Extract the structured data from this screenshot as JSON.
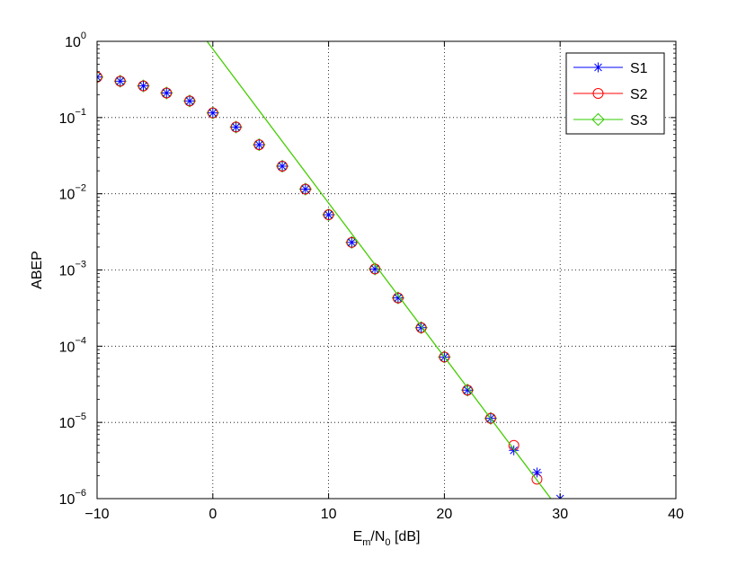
{
  "chart_data": {
    "type": "line",
    "xlabel": {
      "base": "E",
      "sub1": "m",
      "mid": "/N",
      "sub2": "0",
      "tail": " [dB]"
    },
    "ylabel": "ABEP",
    "xlim": [
      -10,
      40
    ],
    "ylim": [
      1e-06,
      1
    ],
    "y_scale": "log",
    "x_ticks": [
      "−10",
      "0",
      "10",
      "20",
      "30",
      "40"
    ],
    "x_tick_values": [
      -10,
      0,
      10,
      20,
      30,
      40
    ],
    "y_ticks": [
      {
        "value": 1,
        "base": "10",
        "exp": "0"
      },
      {
        "value": 0.1,
        "base": "10",
        "exp": "−1"
      },
      {
        "value": 0.01,
        "base": "10",
        "exp": "−2"
      },
      {
        "value": 0.001,
        "base": "10",
        "exp": "−3"
      },
      {
        "value": 0.0001,
        "base": "10",
        "exp": "−4"
      },
      {
        "value": 1e-05,
        "base": "10",
        "exp": "−5"
      },
      {
        "value": 1e-06,
        "base": "10",
        "exp": "−6"
      }
    ],
    "grid": true,
    "grid_style": "dotted",
    "legend_position": "top-right",
    "series": [
      {
        "name": "S1",
        "color": "#0000ff",
        "marker": "asterisk",
        "line": false,
        "x": [
          -10,
          -8,
          -6,
          -4,
          -2,
          0,
          2,
          4,
          6,
          8,
          10,
          12,
          14,
          16,
          18,
          20,
          22,
          24,
          26,
          28,
          30
        ],
        "y": [
          0.34,
          0.3,
          0.26,
          0.21,
          0.165,
          0.115,
          0.075,
          0.044,
          0.023,
          0.0115,
          0.0053,
          0.0023,
          0.00103,
          0.00043,
          0.000175,
          7.2e-05,
          2.65e-05,
          1.13e-05,
          4.3e-06,
          2.2e-06,
          1e-06
        ]
      },
      {
        "name": "S2",
        "color": "#ff0000",
        "marker": "circle",
        "line": false,
        "x": [
          -10,
          -8,
          -6,
          -4,
          -2,
          0,
          2,
          4,
          6,
          8,
          10,
          12,
          14,
          16,
          18,
          20,
          22,
          24,
          26,
          28
        ],
        "y": [
          0.34,
          0.3,
          0.26,
          0.21,
          0.165,
          0.115,
          0.075,
          0.044,
          0.023,
          0.0115,
          0.0053,
          0.0023,
          0.00103,
          0.00043,
          0.000175,
          7.2e-05,
          2.65e-05,
          1.13e-05,
          5e-06,
          1.8e-06
        ]
      },
      {
        "name": "S3",
        "color": "#33cc00",
        "marker": "diamond",
        "line": false,
        "x": [
          -10,
          -8,
          -6,
          -4,
          -2,
          0,
          2,
          4,
          6,
          8,
          10,
          12,
          14,
          16,
          18,
          20,
          22,
          24
        ],
        "y": [
          0.34,
          0.3,
          0.26,
          0.21,
          0.165,
          0.115,
          0.075,
          0.044,
          0.023,
          0.0115,
          0.0053,
          0.0023,
          0.00103,
          0.00043,
          0.000175,
          7.2e-05,
          2.65e-05,
          1.13e-05
        ]
      },
      {
        "color": "#44cc00",
        "marker": "none",
        "line": true,
        "x": [
          -0.5,
          29.2
        ],
        "y": [
          1,
          1e-06
        ]
      }
    ]
  }
}
